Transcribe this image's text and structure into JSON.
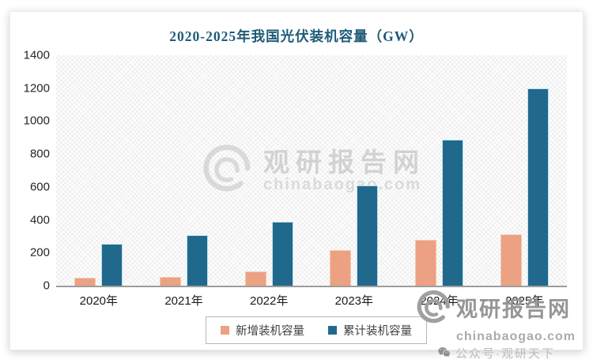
{
  "title": "2020-2025年我国光伏装机容量（GW）",
  "colors": {
    "title": "#1E5B78",
    "series_new": "#ECA183",
    "series_cumulative": "#20698C",
    "axis_line": "#9d9d9d",
    "tick_text": "#262626"
  },
  "y_axis_ticks": [
    "1400",
    "1200",
    "1000",
    "800",
    "600",
    "400",
    "200",
    "0"
  ],
  "chart_data": {
    "type": "bar",
    "title": "2020-2025年我国光伏装机容量（GW）",
    "categories": [
      "2020年",
      "2021年",
      "2022年",
      "2023年",
      "2024年",
      "2025年"
    ],
    "series": [
      {
        "name": "新增装机容量",
        "key": "new",
        "color": "#ECA183",
        "values": [
          48,
          55,
          87,
          217,
          277,
          313
        ]
      },
      {
        "name": "累计装机容量",
        "key": "cumulative",
        "color": "#20698C",
        "values": [
          253,
          306,
          390,
          610,
          887,
          1200
        ]
      }
    ],
    "xlabel": "",
    "ylabel": "",
    "ylim": [
      0,
      1400
    ],
    "yticks": [
      0,
      200,
      400,
      600,
      800,
      1000,
      1200,
      1400
    ],
    "grid": false,
    "legend_position": "bottom",
    "plot_background": "diagonal-crosshatch"
  },
  "watermarks": {
    "center": {
      "brand": "观研报告网",
      "domain": "chinabaogao.com"
    },
    "corner": {
      "brand": "观研报告网",
      "domain": "chinabaogao.com",
      "account": "公众号·观研天下"
    }
  }
}
